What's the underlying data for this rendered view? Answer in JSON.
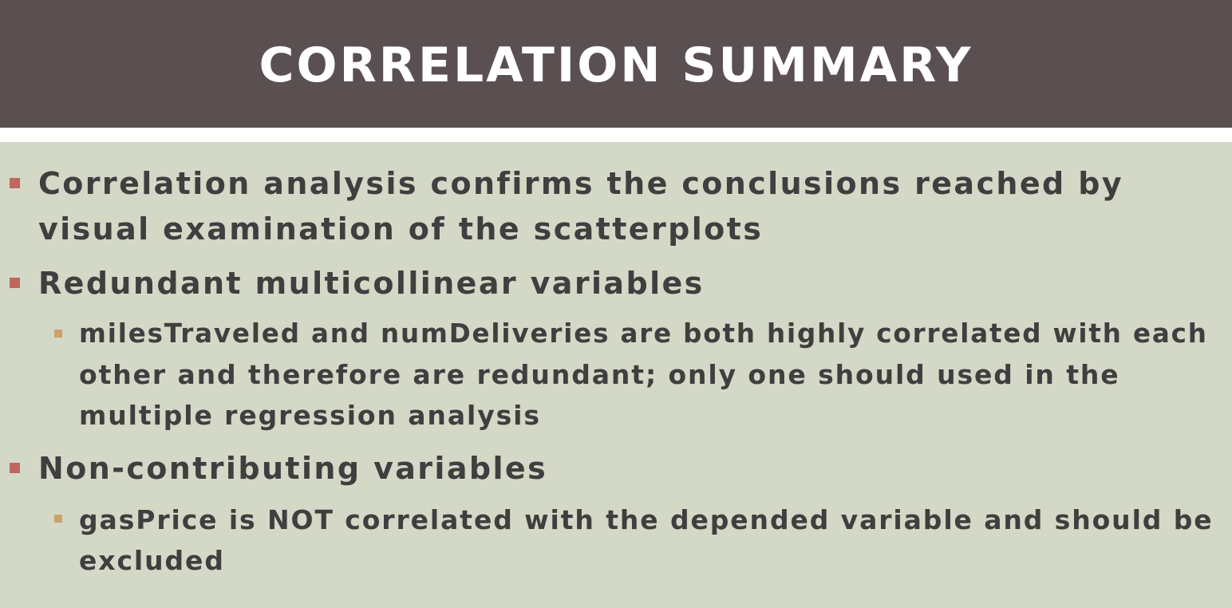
{
  "slide": {
    "title": "CORRELATION SUMMARY",
    "bullets": [
      {
        "lines": [
          "Correlation analysis confirms the conclusions reached by",
          "visual examination of the scatterplots"
        ]
      },
      {
        "lines": [
          "Redundant multicollinear variables"
        ]
      },
      {
        "lines": [
          "milesTraveled and numDeliveries are both highly correlated with each",
          "other and therefore are redundant; only one should used in the",
          "multiple regression analysis"
        ]
      },
      {
        "lines": [
          "Non-contributing variables"
        ]
      },
      {
        "lines": [
          "gasPrice is NOT correlated with the depended variable and should be",
          "excluded"
        ]
      }
    ]
  },
  "colors": {
    "header_background": "#5a5051",
    "slide_background": "#d4d8c6",
    "bullet_level1_marker": "#c0675f",
    "bullet_level2_marker": "#c9a36a",
    "text": "#3f3f3f"
  }
}
